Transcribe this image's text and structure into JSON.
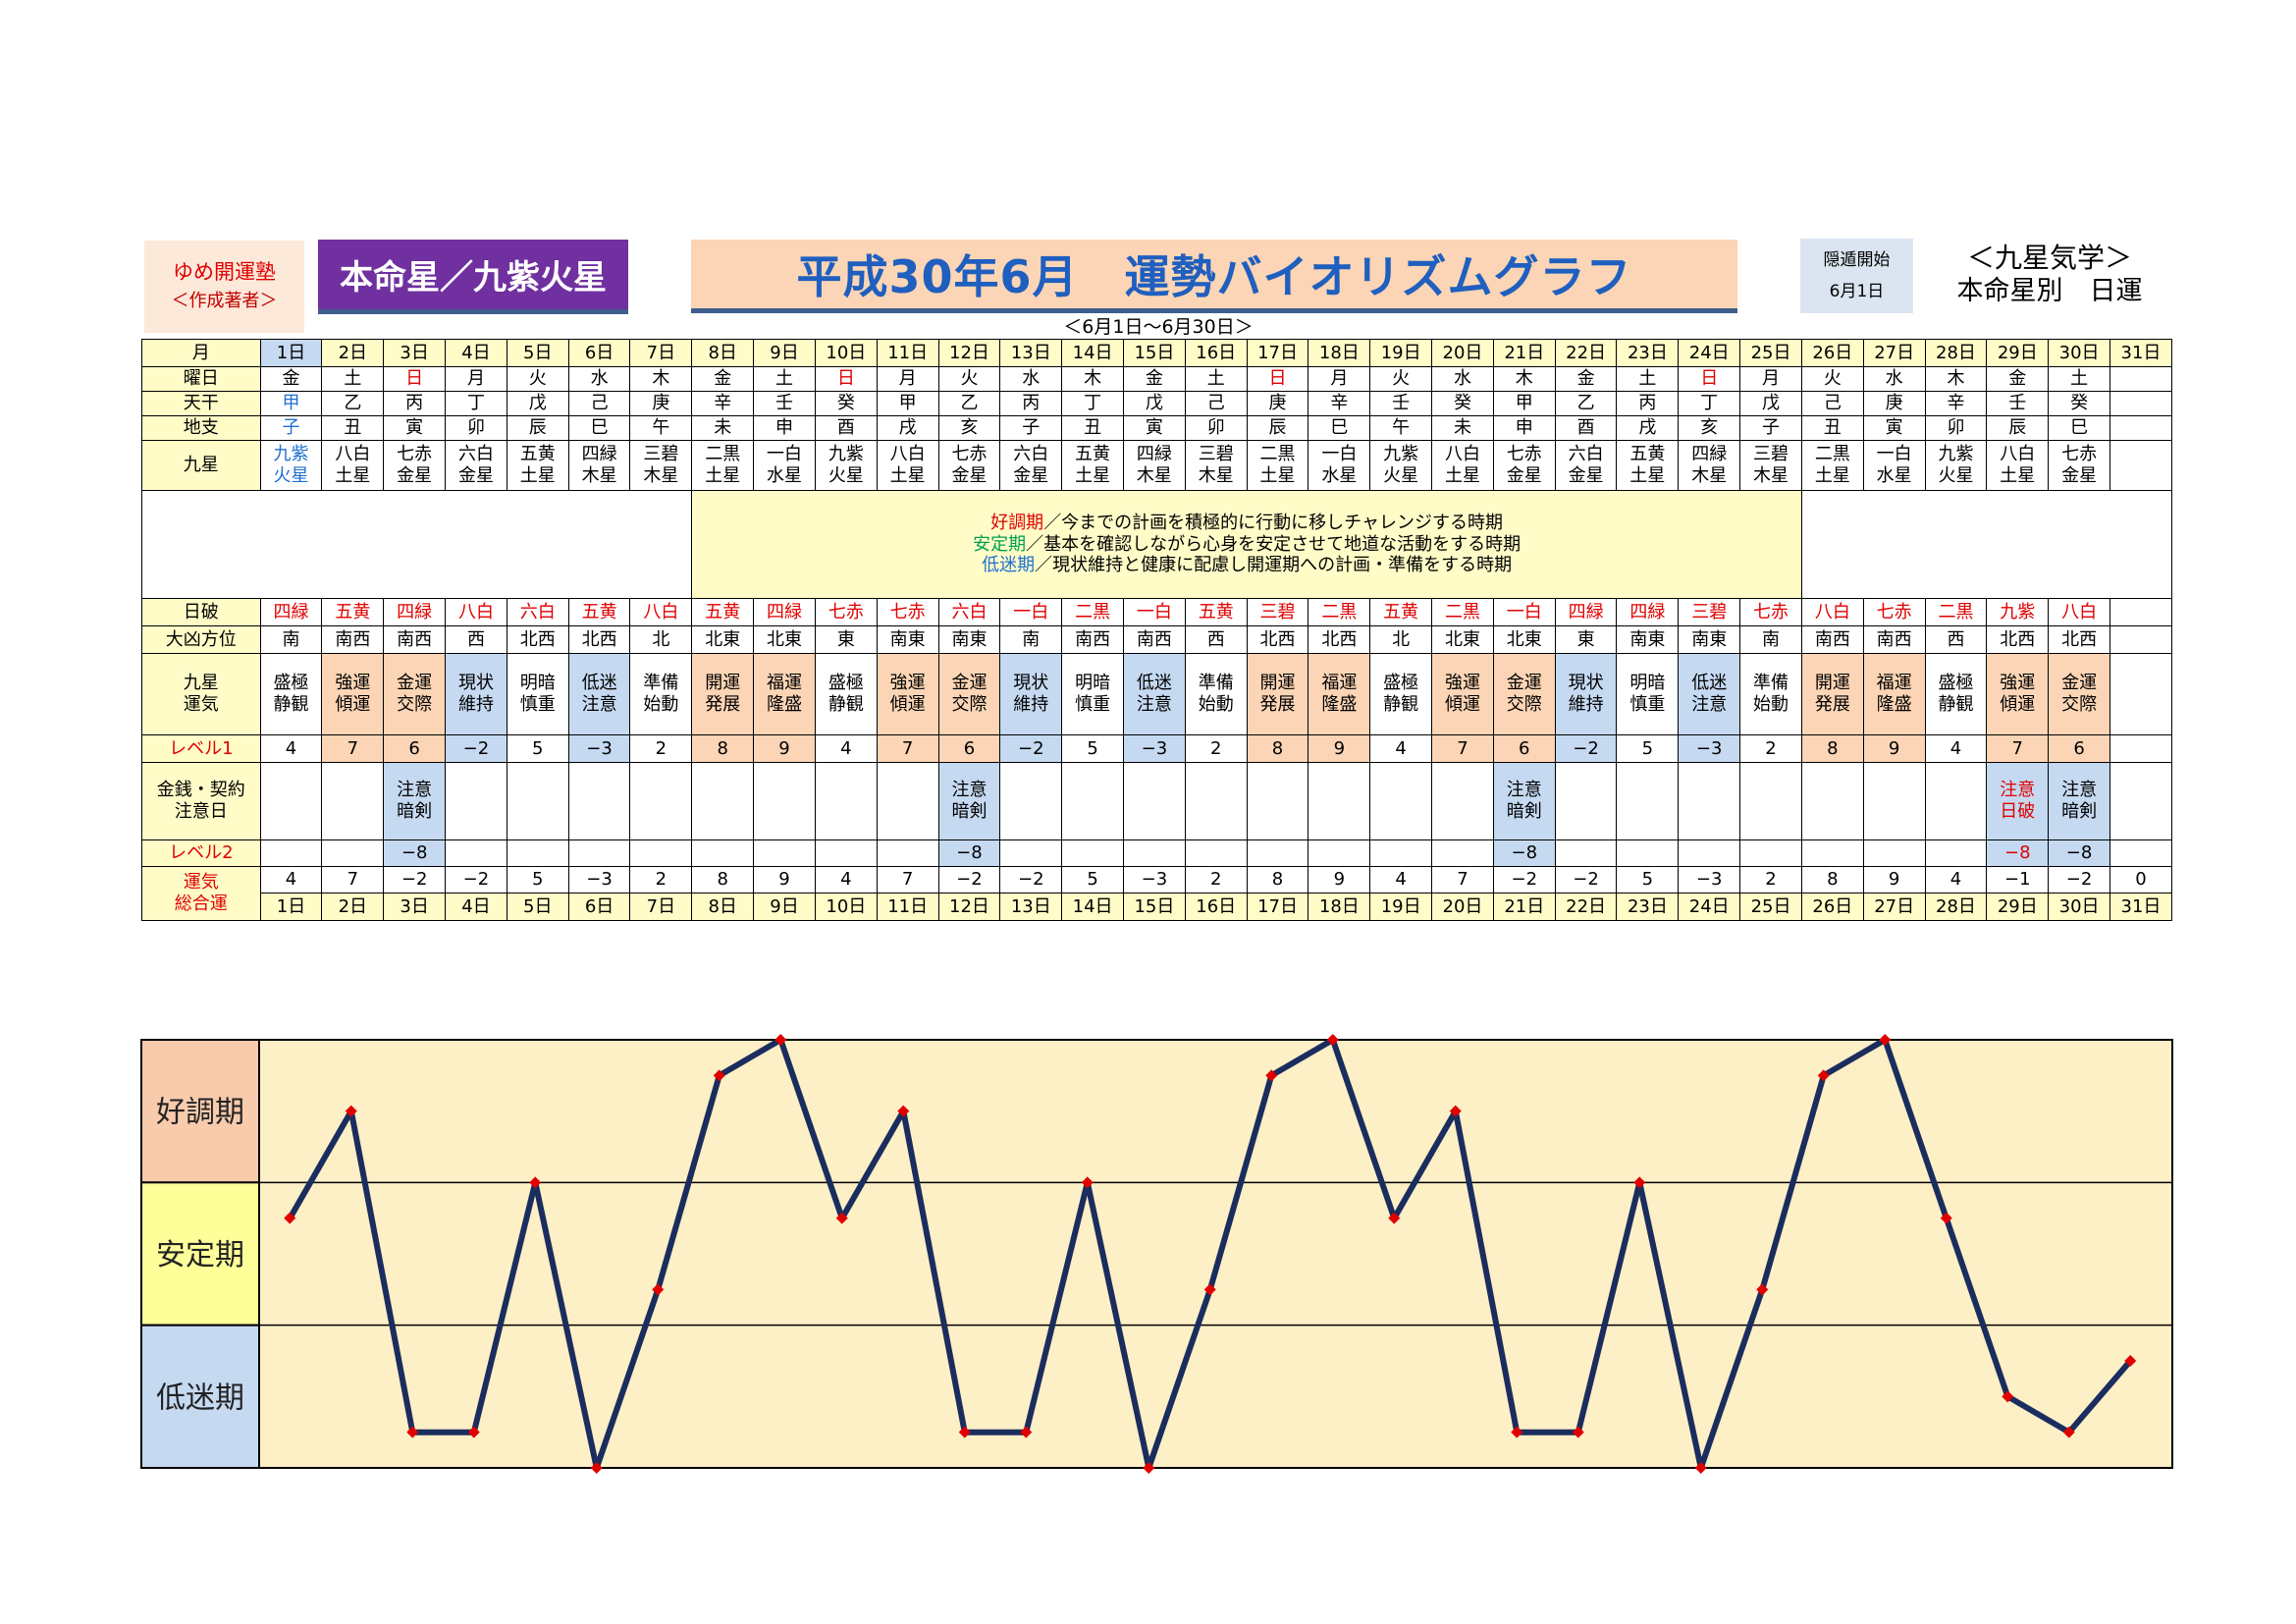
{
  "brand": {
    "name": "ゆめ開運塾",
    "author": "＜作成著者＞"
  },
  "honmei_banner": "本命星／九紫火星",
  "title": "平成30年6月　運勢バイオリズムグラフ",
  "date_range": "＜6月1日～6月30日＞",
  "yoton": {
    "label": "隠遁開始",
    "date": "6月1日"
  },
  "kyusei": {
    "title": "＜九星気学＞",
    "subtitle": "本命星別　日運"
  },
  "row_labels": {
    "month": "月",
    "weekday": "曜日",
    "tenkan": "天干",
    "chishi": "地支",
    "kyusei": "九星",
    "nippa": "日破",
    "daikyo": "大凶方位",
    "unki": [
      "九星",
      "運気"
    ],
    "level1": "レベル1",
    "money": [
      "金銭・契約",
      "注意日"
    ],
    "level2": "レベル2",
    "total": [
      "運気",
      "総合運"
    ]
  },
  "legend": [
    {
      "term": "好調期",
      "desc": "／今までの計画を積極的に行動に移しチャレンジする時期"
    },
    {
      "term": "安定期",
      "desc": "／基本を確認しながら心身を安定させて地道な活動をする時期"
    },
    {
      "term": "低迷期",
      "desc": "／現状維持と健康に配慮し開運期への計画・準備をする時期"
    }
  ],
  "days": [
    "1日",
    "2日",
    "3日",
    "4日",
    "5日",
    "6日",
    "7日",
    "8日",
    "9日",
    "10日",
    "11日",
    "12日",
    "13日",
    "14日",
    "15日",
    "16日",
    "17日",
    "18日",
    "19日",
    "20日",
    "21日",
    "22日",
    "23日",
    "24日",
    "25日",
    "26日",
    "27日",
    "28日",
    "29日",
    "30日",
    "31日"
  ],
  "weekday": [
    "金",
    "土",
    "日",
    "月",
    "火",
    "水",
    "木",
    "金",
    "土",
    "日",
    "月",
    "火",
    "水",
    "木",
    "金",
    "土",
    "日",
    "月",
    "火",
    "水",
    "木",
    "金",
    "土",
    "日",
    "月",
    "火",
    "水",
    "木",
    "金",
    "土",
    ""
  ],
  "tenkan": [
    "甲",
    "乙",
    "丙",
    "丁",
    "戊",
    "己",
    "庚",
    "辛",
    "壬",
    "癸",
    "甲",
    "乙",
    "丙",
    "丁",
    "戊",
    "己",
    "庚",
    "辛",
    "壬",
    "癸",
    "甲",
    "乙",
    "丙",
    "丁",
    "戊",
    "己",
    "庚",
    "辛",
    "壬",
    "癸",
    ""
  ],
  "chishi": [
    "子",
    "丑",
    "寅",
    "卯",
    "辰",
    "巳",
    "午",
    "未",
    "申",
    "酉",
    "戌",
    "亥",
    "子",
    "丑",
    "寅",
    "卯",
    "辰",
    "巳",
    "午",
    "未",
    "申",
    "酉",
    "戌",
    "亥",
    "子",
    "丑",
    "寅",
    "卯",
    "辰",
    "巳",
    ""
  ],
  "kyusei_day": [
    [
      "九紫",
      "火星"
    ],
    [
      "八白",
      "土星"
    ],
    [
      "七赤",
      "金星"
    ],
    [
      "六白",
      "金星"
    ],
    [
      "五黄",
      "土星"
    ],
    [
      "四緑",
      "木星"
    ],
    [
      "三碧",
      "木星"
    ],
    [
      "二黒",
      "土星"
    ],
    [
      "一白",
      "水星"
    ],
    [
      "九紫",
      "火星"
    ],
    [
      "八白",
      "土星"
    ],
    [
      "七赤",
      "金星"
    ],
    [
      "六白",
      "金星"
    ],
    [
      "五黄",
      "土星"
    ],
    [
      "四緑",
      "木星"
    ],
    [
      "三碧",
      "木星"
    ],
    [
      "二黒",
      "土星"
    ],
    [
      "一白",
      "水星"
    ],
    [
      "九紫",
      "火星"
    ],
    [
      "八白",
      "土星"
    ],
    [
      "七赤",
      "金星"
    ],
    [
      "六白",
      "金星"
    ],
    [
      "五黄",
      "土星"
    ],
    [
      "四緑",
      "木星"
    ],
    [
      "三碧",
      "木星"
    ],
    [
      "二黒",
      "土星"
    ],
    [
      "一白",
      "水星"
    ],
    [
      "九紫",
      "火星"
    ],
    [
      "八白",
      "土星"
    ],
    [
      "七赤",
      "金星"
    ],
    [
      "",
      ""
    ]
  ],
  "nippa": [
    "四緑",
    "五黄",
    "四緑",
    "八白",
    "六白",
    "五黄",
    "八白",
    "五黄",
    "四緑",
    "七赤",
    "七赤",
    "六白",
    "一白",
    "二黒",
    "一白",
    "五黄",
    "三碧",
    "二黒",
    "五黄",
    "二黒",
    "一白",
    "四緑",
    "四緑",
    "三碧",
    "七赤",
    "八白",
    "七赤",
    "二黒",
    "九紫",
    "八白",
    ""
  ],
  "daikyo": [
    "南",
    "南西",
    "南西",
    "西",
    "北西",
    "北西",
    "北",
    "北東",
    "北東",
    "東",
    "南東",
    "南東",
    "南",
    "南西",
    "南西",
    "西",
    "北西",
    "北西",
    "北",
    "北東",
    "北東",
    "東",
    "南東",
    "南東",
    "南",
    "南西",
    "南西",
    "西",
    "北西",
    "北西",
    ""
  ],
  "unki": [
    [
      "盛極",
      "静観"
    ],
    [
      "強運",
      "傾運"
    ],
    [
      "金運",
      "交際"
    ],
    [
      "現状",
      "維持"
    ],
    [
      "明暗",
      "慎重"
    ],
    [
      "低迷",
      "注意"
    ],
    [
      "準備",
      "始動"
    ],
    [
      "開運",
      "発展"
    ],
    [
      "福運",
      "隆盛"
    ],
    [
      "盛極",
      "静観"
    ],
    [
      "強運",
      "傾運"
    ],
    [
      "金運",
      "交際"
    ],
    [
      "現状",
      "維持"
    ],
    [
      "明暗",
      "慎重"
    ],
    [
      "低迷",
      "注意"
    ],
    [
      "準備",
      "始動"
    ],
    [
      "開運",
      "発展"
    ],
    [
      "福運",
      "隆盛"
    ],
    [
      "盛極",
      "静観"
    ],
    [
      "強運",
      "傾運"
    ],
    [
      "金運",
      "交際"
    ],
    [
      "現状",
      "維持"
    ],
    [
      "明暗",
      "慎重"
    ],
    [
      "低迷",
      "注意"
    ],
    [
      "準備",
      "始動"
    ],
    [
      "開運",
      "発展"
    ],
    [
      "福運",
      "隆盛"
    ],
    [
      "盛極",
      "静観"
    ],
    [
      "強運",
      "傾運"
    ],
    [
      "金運",
      "交際"
    ],
    [
      "",
      ""
    ]
  ],
  "level1": [
    "4",
    "7",
    "6",
    "−2",
    "5",
    "−3",
    "2",
    "8",
    "9",
    "4",
    "7",
    "6",
    "−2",
    "5",
    "−3",
    "2",
    "8",
    "9",
    "4",
    "7",
    "6",
    "−2",
    "5",
    "−3",
    "2",
    "8",
    "9",
    "4",
    "7",
    "6",
    ""
  ],
  "money": [
    [
      "",
      ""
    ],
    [
      "",
      ""
    ],
    [
      "注意",
      "暗剣"
    ],
    [
      "",
      ""
    ],
    [
      "",
      ""
    ],
    [
      "",
      ""
    ],
    [
      "",
      ""
    ],
    [
      "",
      ""
    ],
    [
      "",
      ""
    ],
    [
      "",
      ""
    ],
    [
      "",
      ""
    ],
    [
      "注意",
      "暗剣"
    ],
    [
      "",
      ""
    ],
    [
      "",
      ""
    ],
    [
      "",
      ""
    ],
    [
      "",
      ""
    ],
    [
      "",
      ""
    ],
    [
      "",
      ""
    ],
    [
      "",
      ""
    ],
    [
      "",
      ""
    ],
    [
      "注意",
      "暗剣"
    ],
    [
      "",
      ""
    ],
    [
      "",
      ""
    ],
    [
      "",
      ""
    ],
    [
      "",
      ""
    ],
    [
      "",
      ""
    ],
    [
      "",
      ""
    ],
    [
      "",
      ""
    ],
    [
      "注意",
      "日破"
    ],
    [
      "注意",
      "暗剣"
    ],
    [
      "",
      ""
    ]
  ],
  "level2": [
    "",
    "",
    "−8",
    "",
    "",
    "",
    "",
    "",
    "",
    "",
    "",
    "−8",
    "",
    "",
    "",
    "",
    "",
    "",
    "",
    "",
    "−8",
    "",
    "",
    "",
    "",
    "",
    "",
    "",
    "−8",
    "−8",
    ""
  ],
  "total": [
    "4",
    "7",
    "−2",
    "−2",
    "5",
    "−3",
    "2",
    "8",
    "9",
    "4",
    "7",
    "−2",
    "−2",
    "5",
    "−3",
    "2",
    "8",
    "9",
    "4",
    "7",
    "−2",
    "−2",
    "5",
    "−3",
    "2",
    "8",
    "9",
    "4",
    "−1",
    "−2",
    "0"
  ],
  "colors": {
    "header_yellow": "#fffcc8",
    "orange": "#fbd5b5",
    "blue": "#c5d9f1",
    "purple": "#7030a0",
    "title_blue": "#1f5fbf",
    "line_navy": "#1a2d5e",
    "marker_red": "#e00000",
    "chart_bg": "#fdefc6",
    "band_good": "#f8cbad",
    "band_stable": "#ffff99",
    "band_low": "#c5d9f1"
  },
  "chart_data": {
    "type": "line",
    "x": [
      "1日",
      "2日",
      "3日",
      "4日",
      "5日",
      "6日",
      "7日",
      "8日",
      "9日",
      "10日",
      "11日",
      "12日",
      "13日",
      "14日",
      "15日",
      "16日",
      "17日",
      "18日",
      "19日",
      "20日",
      "21日",
      "22日",
      "23日",
      "24日",
      "25日",
      "26日",
      "27日",
      "28日",
      "29日",
      "30日",
      "31日"
    ],
    "series": [
      {
        "values": [
          4,
          7,
          -2,
          -2,
          5,
          -3,
          2,
          8,
          9,
          4,
          7,
          -2,
          -2,
          5,
          -3,
          2,
          8,
          9,
          4,
          7,
          -2,
          -2,
          5,
          -3,
          2,
          8,
          9,
          4,
          -1,
          -2,
          0
        ]
      }
    ],
    "y_bands": [
      "好調期",
      "安定期",
      "低迷期"
    ],
    "ylim": [
      -3,
      9
    ],
    "grid": "horizontal band lines"
  }
}
